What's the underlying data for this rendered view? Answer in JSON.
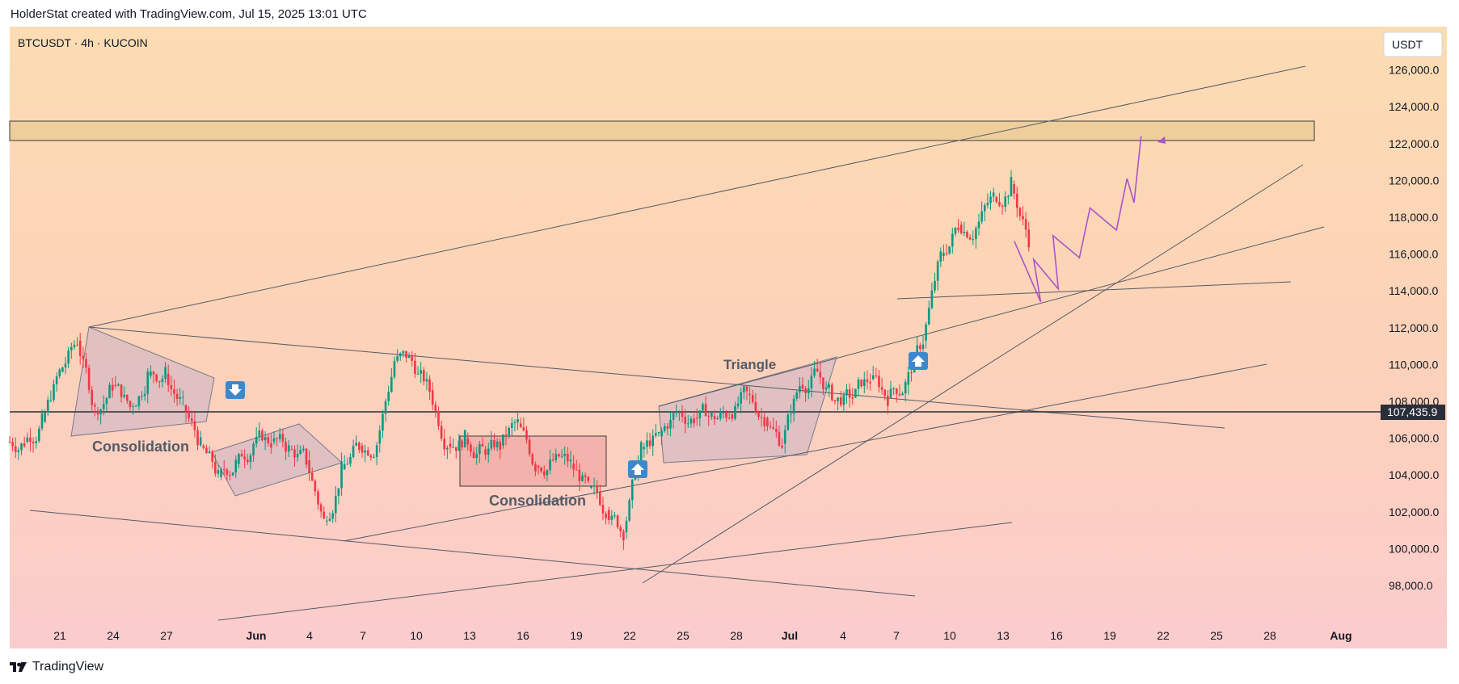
{
  "header": {
    "caption": "HolderStat created with TradingView.com, Jul 15, 2025 13:01 UTC"
  },
  "symbol": {
    "label": "BTCUSDT · 4h · KUCOIN"
  },
  "price_axis": {
    "currency": "USDT",
    "current_price_label": "107,435.9",
    "current_price": 107435.9
  },
  "footer": {
    "brand": "TradingView"
  },
  "annotations": {
    "consolidation_1": "Consolidation",
    "consolidation_2": "Consolidation",
    "triangle": "Triangle"
  },
  "chart_data": {
    "type": "candlestick",
    "title": "BTCUSDT · 4h · KUCOIN",
    "ylabel": "",
    "xlabel": "",
    "ylim": [
      96500,
      127500
    ],
    "grid": false,
    "y_ticks": [
      98000,
      100000,
      102000,
      104000,
      106000,
      108000,
      110000,
      112000,
      114000,
      116000,
      118000,
      120000,
      122000,
      124000,
      126000
    ],
    "y_tick_labels": [
      "98,000.0",
      "100,000.0",
      "102,000.0",
      "104,000.0",
      "106,000.0",
      "108,000.0",
      "110,000.0",
      "112,000.0",
      "114,000.0",
      "116,000.0",
      "118,000.0",
      "120,000.0",
      "122,000.0",
      "124,000.0",
      "126,000.0"
    ],
    "x_tick_labels": [
      "21",
      "24",
      "27",
      "Jun",
      "4",
      "7",
      "10",
      "13",
      "16",
      "19",
      "22",
      "25",
      "28",
      "Jul",
      "4",
      "7",
      "10",
      "13",
      "16",
      "19",
      "22",
      "25",
      "28",
      "Aug"
    ],
    "daily_closes": [
      {
        "date": "May 19",
        "close": 105800
      },
      {
        "date": "May 20",
        "close": 106900
      },
      {
        "date": "May 21",
        "close": 109600
      },
      {
        "date": "May 22",
        "close": 111300
      },
      {
        "date": "May 23",
        "close": 107500
      },
      {
        "date": "May 24",
        "close": 108900
      },
      {
        "date": "May 25",
        "close": 107700
      },
      {
        "date": "May 26",
        "close": 109400
      },
      {
        "date": "May 27",
        "close": 109500
      },
      {
        "date": "May 28",
        "close": 107800
      },
      {
        "date": "May 29",
        "close": 105600
      },
      {
        "date": "May 30",
        "close": 103900
      },
      {
        "date": "May 31",
        "close": 104600
      },
      {
        "date": "Jun 1",
        "close": 105700
      },
      {
        "date": "Jun 2",
        "close": 105800
      },
      {
        "date": "Jun 3",
        "close": 105400
      },
      {
        "date": "Jun 4",
        "close": 104800
      },
      {
        "date": "Jun 5",
        "close": 101500
      },
      {
        "date": "Jun 6",
        "close": 104300
      },
      {
        "date": "Jun 7",
        "close": 105600
      },
      {
        "date": "Jun 8",
        "close": 105700
      },
      {
        "date": "Jun 9",
        "close": 110200
      },
      {
        "date": "Jun 10",
        "close": 110200
      },
      {
        "date": "Jun 11",
        "close": 108600
      },
      {
        "date": "Jun 12",
        "close": 105700
      },
      {
        "date": "Jun 13",
        "close": 106000
      },
      {
        "date": "Jun 14",
        "close": 105400
      },
      {
        "date": "Jun 15",
        "close": 105600
      },
      {
        "date": "Jun 16",
        "close": 106800
      },
      {
        "date": "Jun 17",
        "close": 104500
      },
      {
        "date": "Jun 18",
        "close": 104800
      },
      {
        "date": "Jun 19",
        "close": 104600
      },
      {
        "date": "Jun 20",
        "close": 103300
      },
      {
        "date": "Jun 21",
        "close": 102100
      },
      {
        "date": "Jun 22",
        "close": 100900
      },
      {
        "date": "Jun 23",
        "close": 105400
      },
      {
        "date": "Jun 24",
        "close": 106100
      },
      {
        "date": "Jun 25",
        "close": 107400
      },
      {
        "date": "Jun 26",
        "close": 107100
      },
      {
        "date": "Jun 27",
        "close": 107200
      },
      {
        "date": "Jun 28",
        "close": 107300
      },
      {
        "date": "Jun 29",
        "close": 108400
      },
      {
        "date": "Jun 30",
        "close": 107100
      },
      {
        "date": "Jul 1",
        "close": 105700
      },
      {
        "date": "Jul 2",
        "close": 108900
      },
      {
        "date": "Jul 3",
        "close": 109600
      },
      {
        "date": "Jul 4",
        "close": 108000
      },
      {
        "date": "Jul 5",
        "close": 108200
      },
      {
        "date": "Jul 6",
        "close": 109200
      },
      {
        "date": "Jul 7",
        "close": 108200
      },
      {
        "date": "Jul 8",
        "close": 108900
      },
      {
        "date": "Jul 9",
        "close": 111300
      },
      {
        "date": "Jul 10",
        "close": 115900
      },
      {
        "date": "Jul 11",
        "close": 117600
      },
      {
        "date": "Jul 12",
        "close": 117400
      },
      {
        "date": "Jul 13",
        "close": 119100
      },
      {
        "date": "Jul 14",
        "close": 119800
      },
      {
        "date": "Jul 15",
        "close": 116800
      }
    ],
    "resistance_zone": [
      122000,
      123200
    ],
    "horizontal_level": 107435.9,
    "projection_path": [
      {
        "date": "Jul 15",
        "price": 116700
      },
      {
        "date": "Jul 16",
        "price": 113400
      },
      {
        "date": "Jul 16",
        "price": 115700
      },
      {
        "date": "Jul 17",
        "price": 114100
      },
      {
        "date": "Jul 17",
        "price": 117000
      },
      {
        "date": "Jul 18",
        "price": 115800
      },
      {
        "date": "Jul 19",
        "price": 118500
      },
      {
        "date": "Jul 20",
        "price": 117300
      },
      {
        "date": "Jul 21",
        "price": 120100
      },
      {
        "date": "Jul 21",
        "price": 118800
      },
      {
        "date": "Jul 22",
        "price": 122400
      }
    ]
  }
}
